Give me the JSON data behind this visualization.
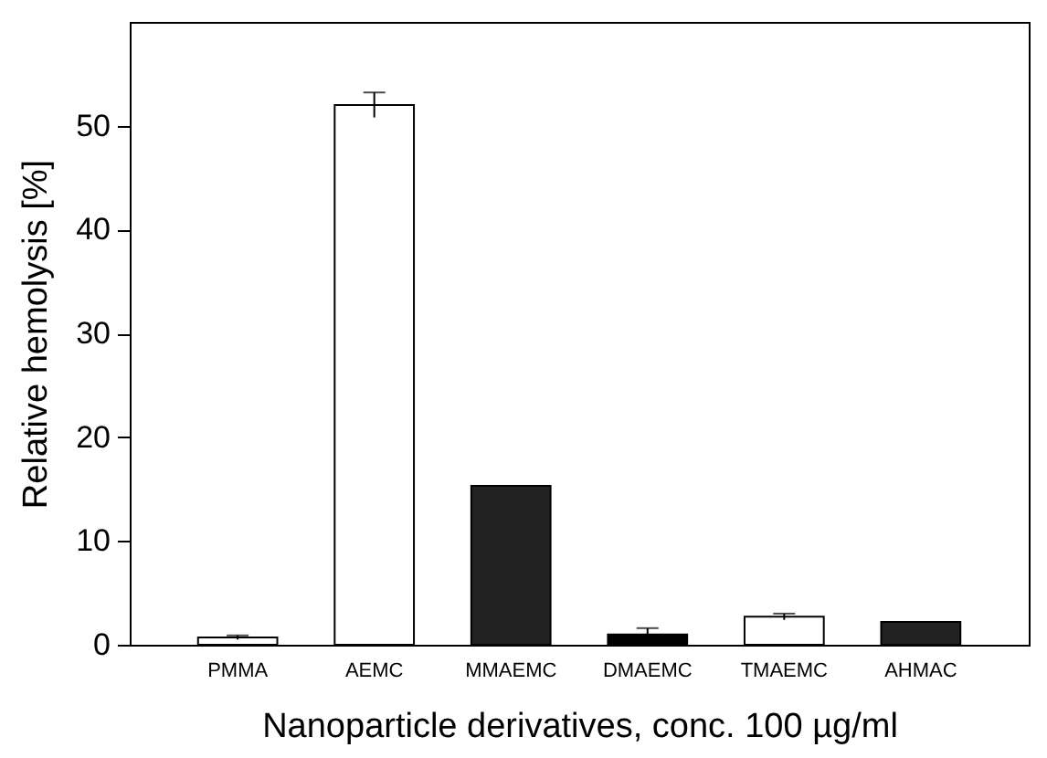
{
  "chart_data": {
    "type": "bar",
    "xlabel": "Nanoparticle derivatives, conc. 100 µg/ml",
    "ylabel": "Relative hemolysis [%]",
    "categories": [
      "PMMA",
      "AEMC",
      "MMAEMC",
      "DMAEMC",
      "TMAEMC",
      "AHMAC"
    ],
    "values": [
      0.7,
      52,
      15.3,
      1.0,
      2.7,
      2.2
    ],
    "errors": [
      0.2,
      1.2,
      null,
      0.6,
      0.3,
      null
    ],
    "colors": [
      "#ffffff",
      "#ffffff",
      "#222222",
      "#000000",
      "#ffffff",
      "#222222"
    ],
    "ylim": [
      0,
      60
    ],
    "yticks": [
      0,
      10,
      20,
      30,
      40,
      50
    ],
    "grid": false
  }
}
